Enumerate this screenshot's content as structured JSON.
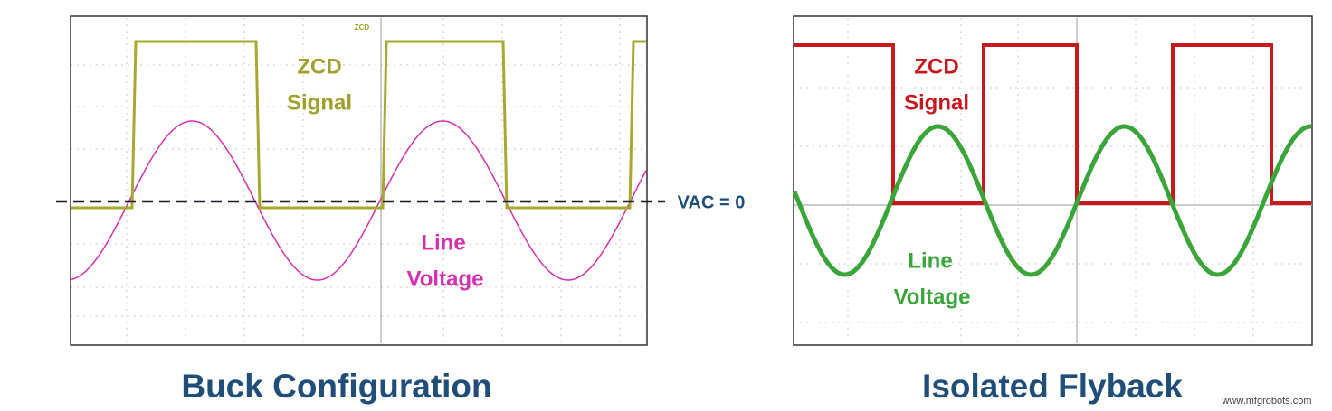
{
  "left_panel": {
    "title": "Buck Configuration",
    "scope_label": "ZCD",
    "zcd_label": [
      "ZCD",
      "Signal"
    ],
    "line_label": [
      "Line",
      "Voltage"
    ],
    "zero_label": "VAC = 0"
  },
  "right_panel": {
    "title": "Isolated Flyback",
    "zcd_label": [
      "ZCD",
      "Signal"
    ],
    "line_label": [
      "Line",
      "Voltage"
    ]
  },
  "watermark": "www.mfgrobots.com"
}
